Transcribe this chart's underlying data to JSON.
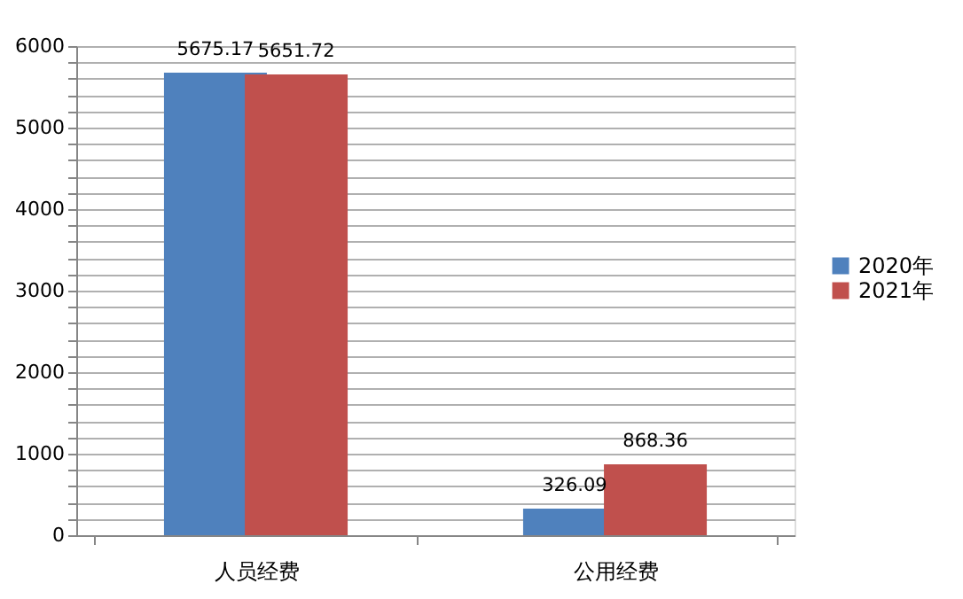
{
  "chart_data": {
    "type": "bar",
    "categories": [
      "人员经费",
      "公用经费"
    ],
    "series": [
      {
        "name": "2020年",
        "color": "#4f81bd",
        "values": [
          5675.17,
          326.09
        ]
      },
      {
        "name": "2021年",
        "color": "#c0504d",
        "values": [
          5651.72,
          868.36
        ]
      }
    ],
    "ylim": [
      0,
      6000
    ],
    "yticks": [
      0,
      {
        "value": 200,
        "label": null
      },
      {
        "value": 400,
        "label": null
      },
      {
        "value": 600,
        "label": null
      },
      {
        "value": 800,
        "label": null
      },
      1000,
      {
        "value": 1200,
        "label": null
      },
      {
        "value": 1400,
        "label": null
      },
      {
        "value": 1600,
        "label": null
      },
      {
        "value": 1800,
        "label": null
      },
      2000,
      {
        "value": 2200,
        "label": null
      },
      {
        "value": 2400,
        "label": null
      },
      {
        "value": 2600,
        "label": null
      },
      {
        "value": 2800,
        "label": null
      },
      3000,
      {
        "value": 3200,
        "label": null
      },
      {
        "value": 3400,
        "label": null
      },
      {
        "value": 3600,
        "label": null
      },
      {
        "value": 3800,
        "label": null
      },
      4000,
      {
        "value": 4200,
        "label": null
      },
      {
        "value": 4400,
        "label": null
      },
      {
        "value": 4600,
        "label": null
      },
      {
        "value": 4800,
        "label": null
      },
      5000,
      {
        "value": 5200,
        "label": null
      },
      {
        "value": 5400,
        "label": null
      },
      {
        "value": 5600,
        "label": null
      },
      {
        "value": 5800,
        "label": null
      },
      6000
    ],
    "grid": "y",
    "legend": "right",
    "data_labels": true
  }
}
